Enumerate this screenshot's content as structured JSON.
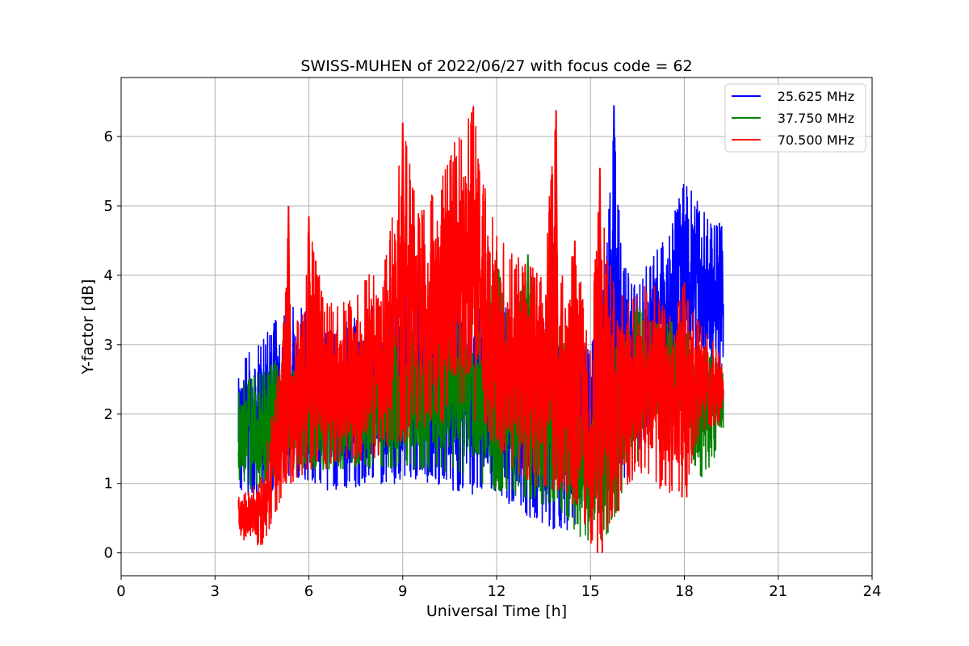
{
  "chart_data": {
    "type": "line",
    "title": "SWISS-MUHEN of 2022/06/27 with focus code = 62",
    "xlabel": "Universal Time [h]",
    "ylabel": "Y-factor [dB]",
    "xlim": [
      0,
      24
    ],
    "ylim": [
      -0.33,
      6.85
    ],
    "xticks": [
      0,
      3,
      6,
      9,
      12,
      15,
      18,
      21,
      24
    ],
    "yticks": [
      0,
      1,
      2,
      3,
      4,
      5,
      6
    ],
    "grid": true,
    "legend_position": "top-right",
    "series": [
      {
        "name": "25.625 MHz",
        "color": "#0000ff",
        "x": [
          3.75,
          4.0,
          4.5,
          5.0,
          5.5,
          6.0,
          6.5,
          7.0,
          7.5,
          8.0,
          8.5,
          9.0,
          9.5,
          10.0,
          10.5,
          11.0,
          11.5,
          12.0,
          12.5,
          13.0,
          13.5,
          14.0,
          14.5,
          15.0,
          15.5,
          15.75,
          16.0,
          16.5,
          17.0,
          17.5,
          18.0,
          18.5,
          19.0,
          19.25
        ],
        "low": [
          0.9,
          0.8,
          0.75,
          0.95,
          1.0,
          0.95,
          0.9,
          0.9,
          0.95,
          1.0,
          1.0,
          1.0,
          1.05,
          0.95,
          0.9,
          0.85,
          0.8,
          0.7,
          0.6,
          0.5,
          0.4,
          0.3,
          0.35,
          0.9,
          1.0,
          1.2,
          1.0,
          1.3,
          1.9,
          2.4,
          2.6,
          2.6,
          2.5,
          2.4
        ],
        "high": [
          2.8,
          2.9,
          3.1,
          3.4,
          3.6,
          3.5,
          3.3,
          3.3,
          3.4,
          3.6,
          3.7,
          3.8,
          3.9,
          4.0,
          3.9,
          3.8,
          3.7,
          3.6,
          3.5,
          3.4,
          3.4,
          3.5,
          3.0,
          3.0,
          4.2,
          6.45,
          4.2,
          3.9,
          4.3,
          4.6,
          5.4,
          5.0,
          4.8,
          4.75
        ]
      },
      {
        "name": "37.750 MHz",
        "color": "#008000",
        "x": [
          3.75,
          4.0,
          4.5,
          5.0,
          5.5,
          6.0,
          6.5,
          7.0,
          7.5,
          8.0,
          8.5,
          9.0,
          9.5,
          10.0,
          10.5,
          11.0,
          11.5,
          12.0,
          12.5,
          13.0,
          13.5,
          14.0,
          14.5,
          15.0,
          15.5,
          16.0,
          16.5,
          17.0,
          17.5,
          18.0,
          18.5,
          19.0,
          19.25
        ],
        "low": [
          1.0,
          0.9,
          0.9,
          1.1,
          1.2,
          1.2,
          1.2,
          1.2,
          1.2,
          1.2,
          1.2,
          1.2,
          1.2,
          1.15,
          1.1,
          1.0,
          1.0,
          0.9,
          0.8,
          0.8,
          0.7,
          0.6,
          0.3,
          0.1,
          0.2,
          0.7,
          1.3,
          1.9,
          2.0,
          1.7,
          1.0,
          1.4,
          1.5
        ],
        "high": [
          2.4,
          2.5,
          2.6,
          2.8,
          2.9,
          2.8,
          2.8,
          2.8,
          2.9,
          3.0,
          3.1,
          3.2,
          3.3,
          3.5,
          3.5,
          3.4,
          3.3,
          4.35,
          3.2,
          4.3,
          3.2,
          3.3,
          2.6,
          2.2,
          2.8,
          3.1,
          3.6,
          3.3,
          3.4,
          3.3,
          3.0,
          2.8,
          2.6
        ]
      },
      {
        "name": "70.500 MHz",
        "color": "#ff0000",
        "x": [
          3.75,
          4.0,
          4.5,
          5.0,
          5.35,
          5.5,
          6.0,
          6.5,
          7.0,
          7.5,
          8.0,
          8.5,
          9.0,
          9.5,
          10.0,
          10.5,
          11.0,
          11.3,
          11.5,
          12.0,
          12.5,
          13.0,
          13.5,
          13.9,
          14.0,
          14.5,
          15.0,
          15.3,
          15.5,
          16.0,
          16.5,
          17.0,
          17.5,
          18.0,
          18.5,
          19.0,
          19.25
        ],
        "low": [
          0.3,
          0.1,
          0.1,
          0.6,
          1.0,
          1.0,
          1.2,
          1.2,
          1.3,
          1.3,
          1.3,
          1.5,
          1.6,
          1.8,
          1.8,
          1.9,
          1.9,
          1.9,
          1.8,
          1.5,
          1.2,
          1.0,
          0.9,
          0.9,
          0.9,
          0.7,
          0.1,
          0.0,
          0.2,
          0.7,
          1.2,
          1.0,
          0.8,
          0.8,
          1.7,
          1.8,
          1.9
        ],
        "high": [
          0.8,
          0.9,
          1.1,
          2.5,
          5.0,
          2.8,
          4.85,
          3.6,
          3.6,
          3.7,
          4.1,
          4.4,
          6.2,
          4.9,
          5.2,
          5.8,
          6.2,
          6.52,
          5.5,
          4.6,
          4.3,
          4.2,
          4.1,
          6.38,
          3.9,
          4.5,
          3.0,
          5.55,
          4.3,
          3.8,
          3.8,
          3.9,
          3.4,
          3.9,
          3.3,
          3.0,
          2.7
        ]
      }
    ]
  }
}
